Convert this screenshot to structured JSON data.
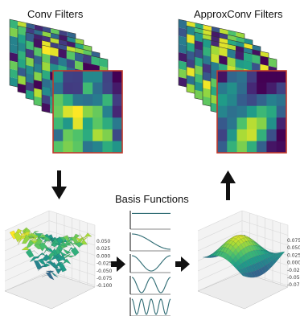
{
  "titles": {
    "conv_filters": "Conv Filters",
    "approxconv_filters": "ApproxConv Filters",
    "basis_functions": "Basis Functions"
  },
  "left_surface_ticks": [
    "0.050",
    "0.025",
    "0.000",
    "-0.025",
    "-0.050",
    "-0.075",
    "-0.100"
  ],
  "right_surface_ticks": [
    "0.075",
    "0.050",
    "0.025",
    "0.000",
    "-0.025",
    "-0.050",
    "-0.075"
  ],
  "basis_frequencies": [
    0,
    1,
    2,
    4,
    8
  ],
  "colors": {
    "viridis": [
      "#440154",
      "#46327e",
      "#365c8d",
      "#277f8e",
      "#1fa187",
      "#4ac16d",
      "#a0da39",
      "#fde725"
    ],
    "highlight_border": "#c0392b",
    "basis_curve": "#2e6b73",
    "arrow": "#111111"
  },
  "icons": {
    "down_arrow": "arrow-down-icon",
    "up_arrow": "arrow-up-icon",
    "right_arrow": "arrow-right-icon"
  }
}
